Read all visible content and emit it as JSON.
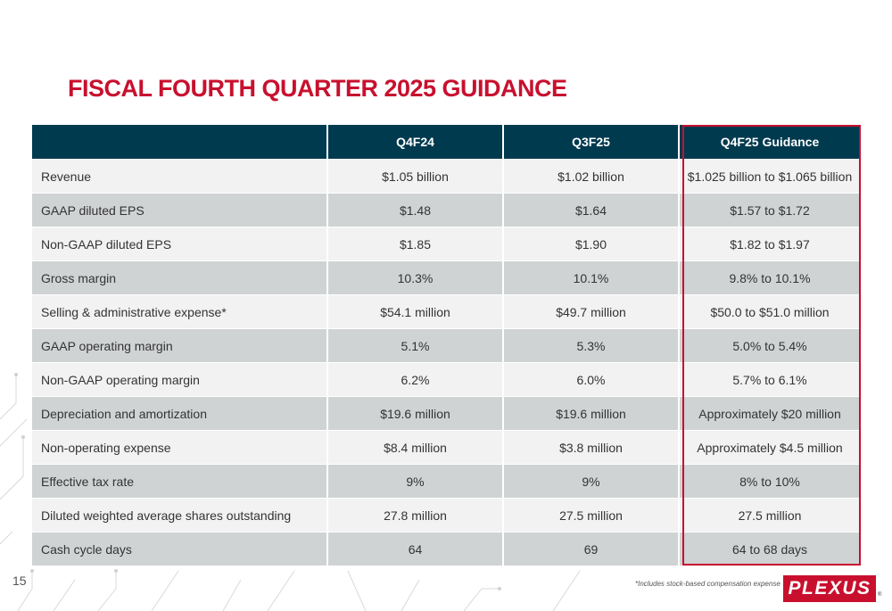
{
  "title": "FISCAL FOURTH QUARTER 2025 GUIDANCE",
  "table": {
    "headers": [
      "",
      "Q4F24",
      "Q3F25",
      "Q4F25 Guidance"
    ],
    "rows": [
      [
        "Revenue",
        "$1.05 billion",
        "$1.02 billion",
        "$1.025 billion to $1.065 billion"
      ],
      [
        "GAAP diluted EPS",
        "$1.48",
        "$1.64",
        "$1.57 to $1.72"
      ],
      [
        "Non-GAAP diluted EPS",
        "$1.85",
        "$1.90",
        "$1.82 to $1.97"
      ],
      [
        "Gross margin",
        "10.3%",
        "10.1%",
        "9.8% to 10.1%"
      ],
      [
        "Selling & administrative expense*",
        "$54.1 million",
        "$49.7 million",
        "$50.0 to $51.0 million"
      ],
      [
        "GAAP operating margin",
        "5.1%",
        "5.3%",
        "5.0% to 5.4%"
      ],
      [
        "Non-GAAP operating margin",
        "6.2%",
        "6.0%",
        "5.7% to 6.1%"
      ],
      [
        "Depreciation and amortization",
        "$19.6 million",
        "$19.6 million",
        "Approximately $20 million"
      ],
      [
        "Non-operating expense",
        "$8.4 million",
        "$3.8 million",
        "Approximately $4.5 million"
      ],
      [
        "Effective tax rate",
        "9%",
        "9%",
        "8% to 10%"
      ],
      [
        "Diluted weighted average shares outstanding",
        "27.8 million",
        "27.5 million",
        "27.5 million"
      ],
      [
        "Cash cycle days",
        "64",
        "69",
        "64 to 68 days"
      ]
    ]
  },
  "footer": {
    "page_number": "15",
    "footnote": "*Includes stock-based compensation expense",
    "logo_text": "PLEXUS",
    "logo_reg": "®"
  },
  "colors": {
    "accent": "#c8102e",
    "header_bg": "#003a4f",
    "row_light": "#f2f2f2",
    "row_dark": "#d0d3d4"
  }
}
